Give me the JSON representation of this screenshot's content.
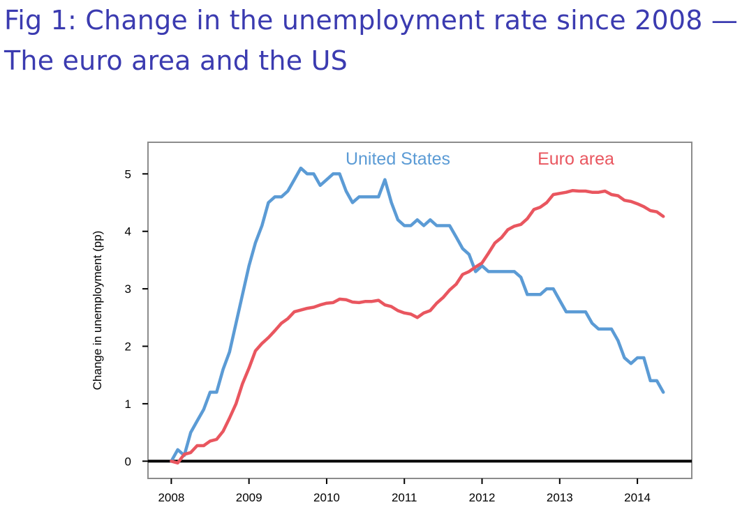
{
  "title": {
    "line1": "Fig 1: Change in the unemployment rate since 2008 —",
    "line2": "The euro area and the US"
  },
  "chart_data": {
    "type": "line",
    "title": "Fig 1: Change in the unemployment rate since 2008 — The euro area and the US",
    "xlabel": "",
    "ylabel": "Change in unemployment (pp)",
    "xlim": [
      2007.7,
      2014.7
    ],
    "ylim": [
      -0.3,
      5.55
    ],
    "xticks": [
      2008,
      2009,
      2010,
      2011,
      2012,
      2013,
      2014
    ],
    "yticks": [
      0,
      1,
      2,
      3,
      4,
      5
    ],
    "grid": false,
    "zero_line": true,
    "legend": "inline-top",
    "series": [
      {
        "name": "United States",
        "color": "#5b9bd5",
        "x": [
          2008.0,
          2008.083,
          2008.167,
          2008.25,
          2008.333,
          2008.417,
          2008.5,
          2008.583,
          2008.667,
          2008.75,
          2008.833,
          2008.917,
          2009.0,
          2009.083,
          2009.167,
          2009.25,
          2009.333,
          2009.417,
          2009.5,
          2009.583,
          2009.667,
          2009.75,
          2009.833,
          2009.917,
          2010.0,
          2010.083,
          2010.167,
          2010.25,
          2010.333,
          2010.417,
          2010.5,
          2010.583,
          2010.667,
          2010.75,
          2010.833,
          2010.917,
          2011.0,
          2011.083,
          2011.167,
          2011.25,
          2011.333,
          2011.417,
          2011.5,
          2011.583,
          2011.667,
          2011.75,
          2011.833,
          2011.917,
          2012.0,
          2012.083,
          2012.167,
          2012.25,
          2012.333,
          2012.417,
          2012.5,
          2012.583,
          2012.667,
          2012.75,
          2012.833,
          2012.917,
          2013.0,
          2013.083,
          2013.167,
          2013.25,
          2013.333,
          2013.417,
          2013.5,
          2013.583,
          2013.667,
          2013.75,
          2013.833,
          2013.917,
          2014.0,
          2014.083,
          2014.167,
          2014.25,
          2014.333
        ],
        "values": [
          0.0,
          0.2,
          0.1,
          0.5,
          0.7,
          0.9,
          1.2,
          1.2,
          1.6,
          1.9,
          2.4,
          2.9,
          3.4,
          3.8,
          4.1,
          4.5,
          4.6,
          4.6,
          4.7,
          4.9,
          5.1,
          5.0,
          5.0,
          4.8,
          4.9,
          5.0,
          5.0,
          4.7,
          4.5,
          4.6,
          4.6,
          4.6,
          4.6,
          4.9,
          4.5,
          4.2,
          4.1,
          4.1,
          4.2,
          4.1,
          4.2,
          4.1,
          4.1,
          4.1,
          3.9,
          3.7,
          3.6,
          3.3,
          3.4,
          3.3,
          3.3,
          3.3,
          3.3,
          3.3,
          3.2,
          2.9,
          2.9,
          2.9,
          3.0,
          3.0,
          2.8,
          2.6,
          2.6,
          2.6,
          2.6,
          2.4,
          2.3,
          2.3,
          2.3,
          2.1,
          1.8,
          1.7,
          1.8,
          1.8,
          1.4,
          1.4,
          1.2
        ]
      },
      {
        "name": "Euro area",
        "color": "#e9565f",
        "x": [
          2008.0,
          2008.083,
          2008.167,
          2008.25,
          2008.333,
          2008.417,
          2008.5,
          2008.583,
          2008.667,
          2008.75,
          2008.833,
          2008.917,
          2009.0,
          2009.083,
          2009.167,
          2009.25,
          2009.333,
          2009.417,
          2009.5,
          2009.583,
          2009.667,
          2009.75,
          2009.833,
          2009.917,
          2010.0,
          2010.083,
          2010.167,
          2010.25,
          2010.333,
          2010.417,
          2010.5,
          2010.583,
          2010.667,
          2010.75,
          2010.833,
          2010.917,
          2011.0,
          2011.083,
          2011.167,
          2011.25,
          2011.333,
          2011.417,
          2011.5,
          2011.583,
          2011.667,
          2011.75,
          2011.833,
          2011.917,
          2012.0,
          2012.083,
          2012.167,
          2012.25,
          2012.333,
          2012.417,
          2012.5,
          2012.583,
          2012.667,
          2012.75,
          2012.833,
          2012.917,
          2013.0,
          2013.083,
          2013.167,
          2013.25,
          2013.333,
          2013.417,
          2013.5,
          2013.583,
          2013.667,
          2013.75,
          2013.833,
          2013.917,
          2014.0,
          2014.083,
          2014.167,
          2014.25,
          2014.333
        ],
        "values": [
          0.0,
          -0.03,
          0.12,
          0.15,
          0.27,
          0.27,
          0.35,
          0.38,
          0.52,
          0.75,
          1.0,
          1.35,
          1.62,
          1.92,
          2.05,
          2.15,
          2.27,
          2.4,
          2.48,
          2.6,
          2.63,
          2.66,
          2.68,
          2.72,
          2.75,
          2.76,
          2.82,
          2.81,
          2.77,
          2.76,
          2.78,
          2.78,
          2.8,
          2.72,
          2.69,
          2.62,
          2.58,
          2.56,
          2.5,
          2.58,
          2.62,
          2.75,
          2.85,
          2.98,
          3.08,
          3.25,
          3.3,
          3.38,
          3.45,
          3.62,
          3.8,
          3.89,
          4.03,
          4.09,
          4.12,
          4.22,
          4.38,
          4.42,
          4.5,
          4.64,
          4.66,
          4.68,
          4.71,
          4.7,
          4.7,
          4.68,
          4.68,
          4.7,
          4.64,
          4.62,
          4.54,
          4.52,
          4.48,
          4.43,
          4.36,
          4.34,
          4.26
        ]
      }
    ]
  }
}
